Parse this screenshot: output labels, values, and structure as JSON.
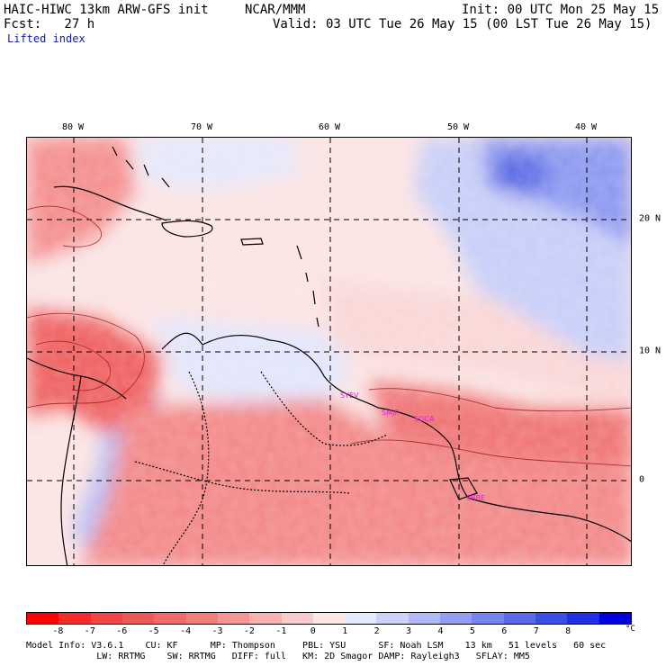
{
  "header": {
    "model_title": "HAIC-HIWC 13km ARW-GFS init",
    "org": "NCAR/MMM",
    "init": "Init: 00 UTC Mon 25 May 15",
    "fcst": "Fcst:   27 h",
    "valid": "Valid: 03 UTC Tue 26 May 15 (00 LST Tue 26 May 15)",
    "field": "Lifted index"
  },
  "map": {
    "lon_labels": [
      "80 W",
      "70 W",
      "60 W",
      "50 W",
      "40 W"
    ],
    "lat_labels": [
      "20 N",
      "10 N",
      "0"
    ],
    "stations": [
      "SYEV",
      "SMJP",
      "SOCA",
      "SBBE"
    ],
    "colors": {
      "neg_strong": "#ee3a3a",
      "neg_mid": "#f47878",
      "neg_light": "#f9b6b6",
      "neutral": "#fbe7e7",
      "pos_light": "#dfe3fb",
      "pos_mid": "#9da8f2",
      "pos_strong": "#5a6ae0",
      "coast": "#000000",
      "station": "#e020e0"
    }
  },
  "colorbar": {
    "ticks": [
      "-8",
      "-7",
      "-6",
      "-5",
      "-4",
      "-3",
      "-2",
      "-1",
      "0",
      "1",
      "2",
      "3",
      "4",
      "5",
      "6",
      "7",
      "8"
    ],
    "units": "°C",
    "colors": [
      "#ff0000",
      "#f52a2a",
      "#f24545",
      "#f05858",
      "#f06a6a",
      "#f27e7e",
      "#f59595",
      "#f8b0b0",
      "#fbcccc",
      "#fde8e8",
      "#e8ebfd",
      "#ccd2fa",
      "#b0b8f6",
      "#949ff2",
      "#7884ee",
      "#5c6aea",
      "#3c4ee6",
      "#1e30e2",
      "#0000e0"
    ]
  },
  "footer": {
    "line1": "Model Info: V3.6.1    CU: KF      MP: Thompson     PBL: YSU      SF: Noah LSM    13 km   51 levels   60 sec",
    "line2": "             LW: RRTMG    SW: RRTMG   DIFF: full   KM: 2D Smagor DAMP: Rayleigh3   SFLAY: MM5"
  }
}
